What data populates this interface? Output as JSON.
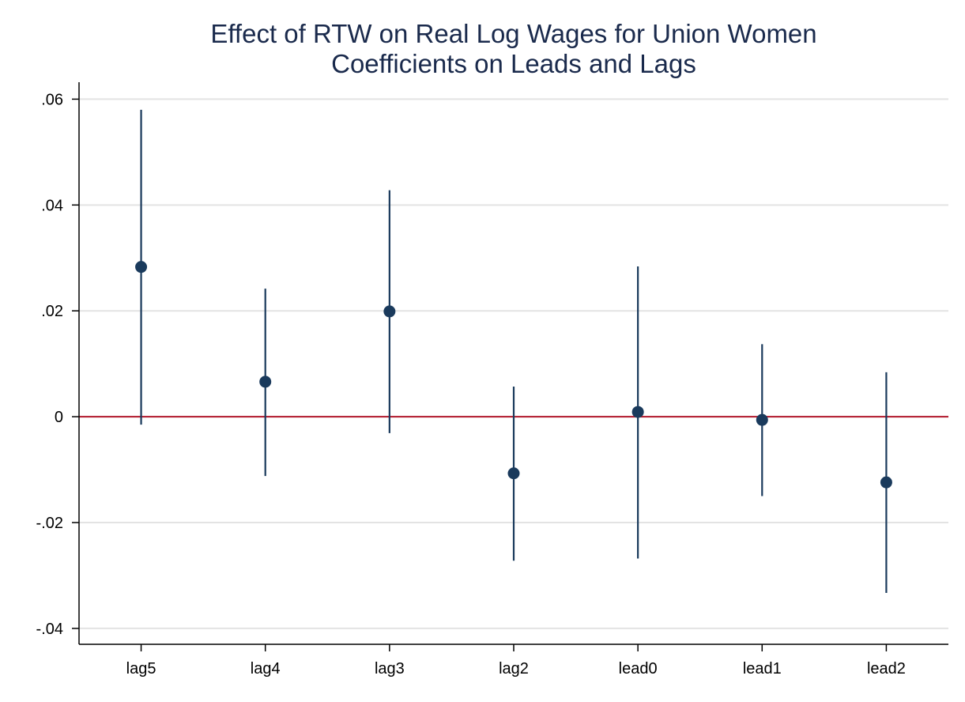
{
  "chart_data": {
    "type": "scatter",
    "title": "Effect of RTW on Real Log Wages for Union Women",
    "subtitle": "Coefficients on Leads and Lags",
    "xlabel": "",
    "ylabel": "",
    "categories": [
      "lag5",
      "lag4",
      "lag3",
      "lag2",
      "lead0",
      "lead1",
      "lead2"
    ],
    "series": [
      {
        "values": [
          0.0283,
          0.0066,
          0.0199,
          -0.0107,
          0.0009,
          -0.0006,
          -0.0124
        ],
        "ci_lower": [
          -0.0015,
          -0.0112,
          -0.0031,
          -0.0272,
          -0.0268,
          -0.015,
          -0.0333
        ],
        "ci_upper": [
          0.058,
          0.0242,
          0.0428,
          0.0057,
          0.0284,
          0.0137,
          0.0084
        ]
      }
    ],
    "ylim": [
      -0.043,
      0.0632
    ],
    "yticks": [
      0.06,
      0.04,
      0.02,
      0,
      -0.02,
      -0.04
    ],
    "ytick_labels": [
      ".06",
      ".04",
      ".02",
      "0",
      "-.02",
      "-.04"
    ],
    "reference_line": 0,
    "grid": true,
    "colors": {
      "marker": "#1a3a5c",
      "ci_line": "#1a3a5c",
      "reference_line": "#b2182b",
      "grid": "#e3e3e3",
      "title": "#1a2a4c"
    }
  }
}
